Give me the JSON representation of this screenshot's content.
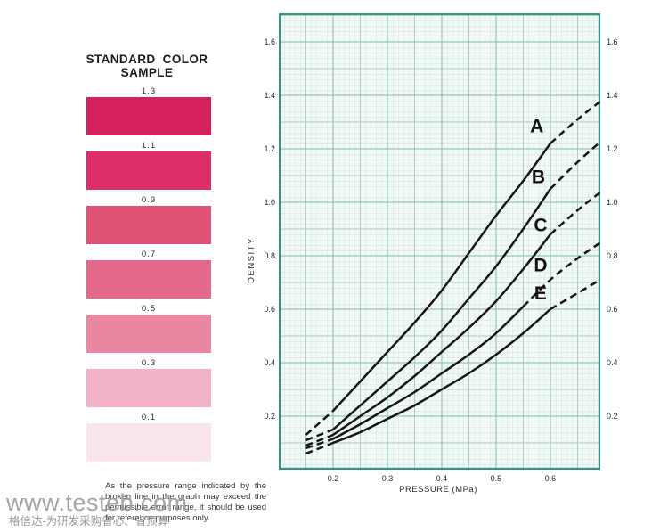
{
  "left_panel": {
    "title_line1": "STANDARD COLOR",
    "title_line2": "SAMPLE",
    "swatches": [
      {
        "label": "1.3",
        "color": "#d6215e"
      },
      {
        "label": "1.1",
        "color": "#dd2e67"
      },
      {
        "label": "0.9",
        "color": "#e15277"
      },
      {
        "label": "0.7",
        "color": "#e4698a"
      },
      {
        "label": "0.5",
        "color": "#e987a0"
      },
      {
        "label": "0.3",
        "color": "#f1b3c5"
      },
      {
        "label": "0.1",
        "color": "#fae6eb"
      }
    ],
    "disclaimer": "As the pressure range indicated by the broken line in the graph may exceed the permissible error range, it should be used for reference purposes only."
  },
  "watermark": {
    "line1": "www.testeb.com",
    "line2": "格信达-为研发采购省心、省预算"
  },
  "chart_data": {
    "type": "line",
    "title": "",
    "xlabel": "PRESSURE (MPa)",
    "ylabel": "DENSITY",
    "x_range": [
      0.1,
      0.692
    ],
    "y_range": [
      0,
      1.7067
    ],
    "x_ticks": [
      0.2,
      0.3,
      0.4,
      0.5,
      0.6
    ],
    "y_ticks": [
      0.2,
      0.4,
      0.6,
      0.8,
      1.0,
      1.2,
      1.4,
      1.6
    ],
    "grid": "fine graph paper, minor/medium/major lines",
    "legend_position": "labels beside curves, upper right",
    "x": [
      0.15,
      0.2,
      0.25,
      0.3,
      0.35,
      0.4,
      0.45,
      0.5,
      0.55,
      0.6,
      0.65,
      0.7
    ],
    "series": [
      {
        "name": "A",
        "values": [
          0.13,
          0.22,
          0.33,
          0.44,
          0.55,
          0.67,
          0.81,
          0.95,
          1.08,
          1.22,
          1.31,
          1.39
        ],
        "solid_range": [
          0.2,
          0.6
        ],
        "label_pos": [
          0.575,
          1.28
        ]
      },
      {
        "name": "B",
        "values": [
          0.11,
          0.15,
          0.24,
          0.33,
          0.42,
          0.52,
          0.64,
          0.76,
          0.9,
          1.05,
          1.15,
          1.24
        ],
        "solid_range": [
          0.2,
          0.6
        ],
        "label_pos": [
          0.578,
          1.09
        ]
      },
      {
        "name": "C",
        "values": [
          0.09,
          0.13,
          0.2,
          0.27,
          0.35,
          0.44,
          0.53,
          0.63,
          0.75,
          0.88,
          0.97,
          1.05
        ],
        "solid_range": [
          0.2,
          0.6
        ],
        "label_pos": [
          0.582,
          0.91
        ]
      },
      {
        "name": "D",
        "values": [
          0.08,
          0.115,
          0.17,
          0.23,
          0.29,
          0.36,
          0.43,
          0.51,
          0.61,
          0.71,
          0.79,
          0.86
        ],
        "solid_range": [
          0.2,
          0.55
        ],
        "label_pos": [
          0.582,
          0.76
        ]
      },
      {
        "name": "E",
        "values": [
          0.06,
          0.1,
          0.14,
          0.19,
          0.24,
          0.3,
          0.36,
          0.43,
          0.51,
          0.6,
          0.66,
          0.72
        ],
        "solid_range": [
          0.2,
          0.6
        ],
        "label_pos": [
          0.582,
          0.655
        ]
      }
    ],
    "colors": {
      "paper": "#f2f8f5",
      "grid_minor": "#cfe6dd",
      "grid_medium": "#a8d1c4",
      "grid_major": "#7fbdac",
      "border": "#359485",
      "curve": "#161616"
    }
  }
}
